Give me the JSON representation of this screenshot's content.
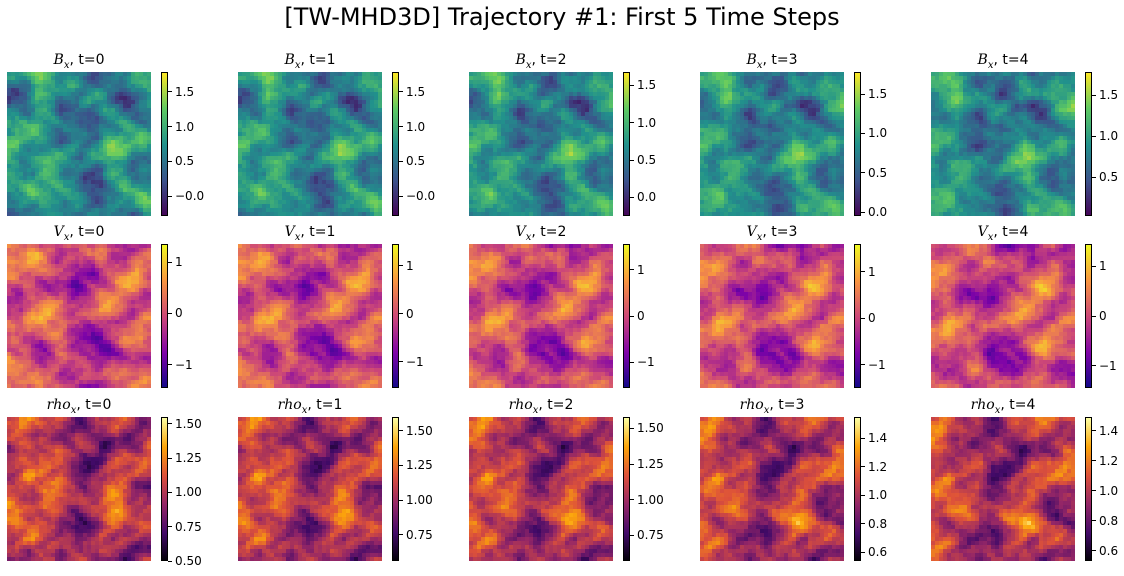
{
  "figure": {
    "title": "[TW-MHD3D] Trajectory #1: First 5 Time Steps"
  },
  "chart_data": {
    "type": "heatmap",
    "title": "[TW-MHD3D] Trajectory #1: First 5 Time Steps",
    "grid": false,
    "rows": [
      {
        "field": "B",
        "field_subscript": "x",
        "colormap": "viridis",
        "colormap_stops": [
          "#440154",
          "#3b528b",
          "#21918c",
          "#5ec962",
          "#fde725"
        ],
        "panels": [
          {
            "t_label": ", t=0",
            "vmin": -0.28,
            "vmax": 1.78,
            "ticks": [
              -0.0,
              0.5,
              1.0,
              1.5
            ],
            "tick_labels": [
              "−0.0",
              "0.5",
              "1.0",
              "1.5"
            ]
          },
          {
            "t_label": ", t=1",
            "vmin": -0.28,
            "vmax": 1.78,
            "ticks": [
              -0.0,
              0.5,
              1.0,
              1.5
            ],
            "tick_labels": [
              "−0.0",
              "0.5",
              "1.0",
              "1.5"
            ]
          },
          {
            "t_label": ", t=2",
            "vmin": -0.25,
            "vmax": 1.68,
            "ticks": [
              0.0,
              0.5,
              1.0,
              1.5
            ],
            "tick_labels": [
              "0.0",
              "0.5",
              "1.0",
              "1.5"
            ]
          },
          {
            "t_label": ", t=3",
            "vmin": -0.05,
            "vmax": 1.78,
            "ticks": [
              0.0,
              0.5,
              1.0,
              1.5
            ],
            "tick_labels": [
              "0.0",
              "0.5",
              "1.0",
              "1.5"
            ]
          },
          {
            "t_label": ", t=4",
            "vmin": 0.03,
            "vmax": 1.78,
            "ticks": [
              0.5,
              1.0,
              1.5
            ],
            "tick_labels": [
              "0.5",
              "1.0",
              "1.5"
            ]
          }
        ]
      },
      {
        "field": "V",
        "field_subscript": "x",
        "colormap": "plasma",
        "colormap_stops": [
          "#0d0887",
          "#7e03a8",
          "#cc4778",
          "#f89540",
          "#f0f921"
        ],
        "panels": [
          {
            "t_label": ", t=0",
            "vmin": -1.45,
            "vmax": 1.35,
            "ticks": [
              -1,
              0,
              1
            ],
            "tick_labels": [
              "−1",
              "0",
              "1"
            ]
          },
          {
            "t_label": ", t=1",
            "vmin": -1.55,
            "vmax": 1.45,
            "ticks": [
              -1,
              0,
              1
            ],
            "tick_labels": [
              "−1",
              "0",
              "1"
            ]
          },
          {
            "t_label": ", t=2",
            "vmin": -1.55,
            "vmax": 1.55,
            "ticks": [
              -1,
              0,
              1
            ],
            "tick_labels": [
              "−1",
              "0",
              "1"
            ]
          },
          {
            "t_label": ", t=3",
            "vmin": -1.5,
            "vmax": 1.6,
            "ticks": [
              -1,
              0,
              1
            ],
            "tick_labels": [
              "−1",
              "0",
              "1"
            ]
          },
          {
            "t_label": ", t=4",
            "vmin": -1.45,
            "vmax": 1.45,
            "ticks": [
              -1,
              0,
              1
            ],
            "tick_labels": [
              "−1",
              "0",
              "1"
            ]
          }
        ]
      },
      {
        "field": "rho",
        "field_subscript": "x",
        "colormap": "inferno",
        "colormap_stops": [
          "#000004",
          "#420a68",
          "#932667",
          "#dd513a",
          "#fca50a",
          "#fcffa4"
        ],
        "panels": [
          {
            "t_label": ", t=0",
            "vmin": 0.5,
            "vmax": 1.55,
            "ticks": [
              0.5,
              0.75,
              1.0,
              1.25,
              1.5
            ],
            "tick_labels": [
              "0.50",
              "0.75",
              "1.00",
              "1.25",
              "1.50"
            ]
          },
          {
            "t_label": ", t=1",
            "vmin": 0.56,
            "vmax": 1.6,
            "ticks": [
              0.75,
              1.0,
              1.25,
              1.5
            ],
            "tick_labels": [
              "0.75",
              "1.00",
              "1.25",
              "1.50"
            ]
          },
          {
            "t_label": ", t=2",
            "vmin": 0.57,
            "vmax": 1.58,
            "ticks": [
              0.75,
              1.0,
              1.25,
              1.5
            ],
            "tick_labels": [
              "0.75",
              "1.00",
              "1.25",
              "1.50"
            ]
          },
          {
            "t_label": ", t=3",
            "vmin": 0.54,
            "vmax": 1.55,
            "ticks": [
              0.6,
              0.8,
              1.0,
              1.2,
              1.4
            ],
            "tick_labels": [
              "0.6",
              "0.8",
              "1.0",
              "1.2",
              "1.4"
            ]
          },
          {
            "t_label": ", t=4",
            "vmin": 0.53,
            "vmax": 1.49,
            "ticks": [
              0.6,
              0.8,
              1.0,
              1.2,
              1.4
            ],
            "tick_labels": [
              "0.6",
              "0.8",
              "1.0",
              "1.2",
              "1.4"
            ]
          }
        ]
      }
    ]
  }
}
